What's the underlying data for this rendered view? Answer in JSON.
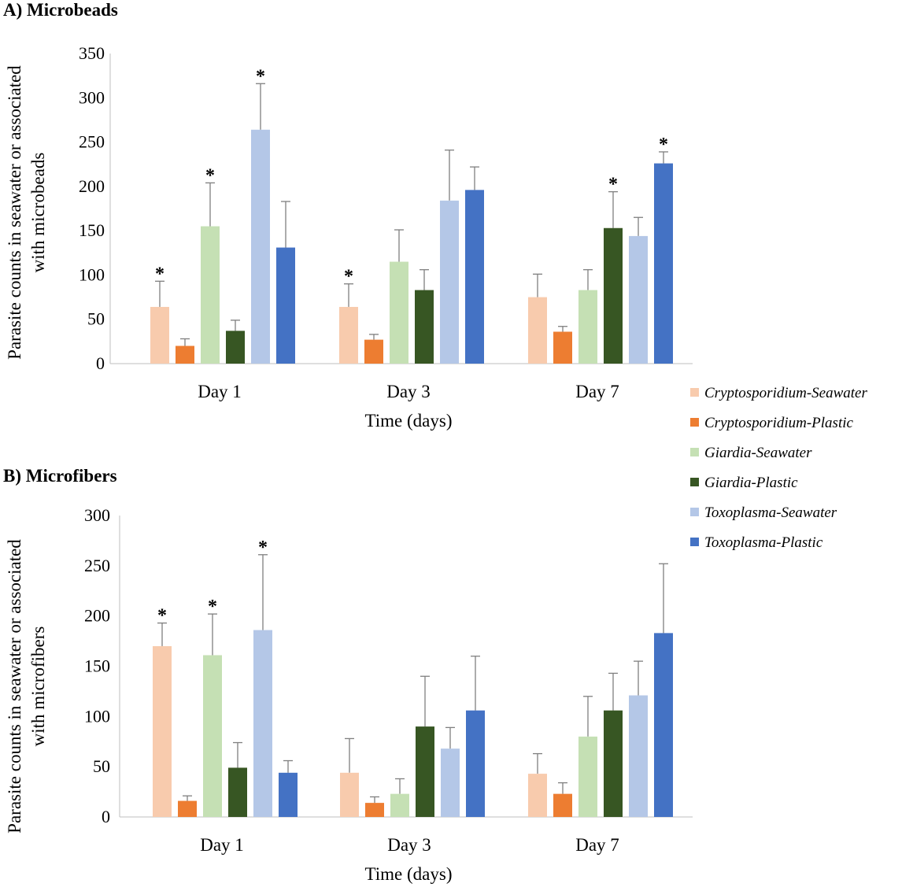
{
  "colors": [
    "#f8cbad",
    "#ed7d31",
    "#c5e0b4",
    "#375623",
    "#b4c7e7",
    "#4472c4"
  ],
  "legend": [
    "Cryptosporidium-Seawater",
    "Cryptosporidium-Plastic",
    "Giardia-Seawater",
    "Giardia-Plastic",
    "Toxoplasma-Seawater",
    "Toxoplasma-Plastic"
  ],
  "chart_data": [
    {
      "type": "bar",
      "title": "A) Microbeads",
      "xlabel": "Time (days)",
      "ylabel": [
        "Parasite counts in seawater or associated",
        "with microbeads"
      ],
      "categories": [
        "Day 1",
        "Day 3",
        "Day 7"
      ],
      "ylim": [
        0,
        350
      ],
      "yticks": [
        0,
        50,
        100,
        150,
        200,
        250,
        300,
        350
      ],
      "grid": false,
      "legend_position": "right",
      "series": [
        {
          "name": "Cryptosporidium-Seawater",
          "values": [
            64,
            64,
            75
          ],
          "error_upper": [
            93,
            90,
            101
          ],
          "significant": [
            true,
            true,
            false
          ]
        },
        {
          "name": "Cryptosporidium-Plastic",
          "values": [
            20,
            27,
            36
          ],
          "error_upper": [
            28,
            33,
            42
          ],
          "significant": [
            false,
            false,
            false
          ]
        },
        {
          "name": "Giardia-Seawater",
          "values": [
            155,
            115,
            83
          ],
          "error_upper": [
            204,
            151,
            106
          ],
          "significant": [
            true,
            false,
            false
          ]
        },
        {
          "name": "Giardia-Plastic",
          "values": [
            37,
            83,
            153
          ],
          "error_upper": [
            49,
            106,
            194
          ],
          "significant": [
            false,
            false,
            true
          ]
        },
        {
          "name": "Toxoplasma-Seawater",
          "values": [
            264,
            184,
            144
          ],
          "error_upper": [
            316,
            241,
            165
          ],
          "significant": [
            true,
            false,
            false
          ]
        },
        {
          "name": "Toxoplasma-Plastic",
          "values": [
            131,
            196,
            226
          ],
          "error_upper": [
            183,
            222,
            239
          ],
          "significant": [
            false,
            false,
            true
          ]
        }
      ],
      "annotation": "*"
    },
    {
      "type": "bar",
      "title": "B) Microfibers",
      "xlabel": "Time (days)",
      "ylabel": [
        "Parasite counts in seawater or associated",
        "with microfibers"
      ],
      "categories": [
        "Day 1",
        "Day 3",
        "Day 7"
      ],
      "ylim": [
        0,
        300
      ],
      "yticks": [
        0,
        50,
        100,
        150,
        200,
        250,
        300
      ],
      "grid": false,
      "legend_position": "right",
      "series": [
        {
          "name": "Cryptosporidium-Seawater",
          "values": [
            170,
            44,
            43
          ],
          "error_upper": [
            193,
            78,
            63
          ],
          "significant": [
            true,
            false,
            false
          ]
        },
        {
          "name": "Cryptosporidium-Plastic",
          "values": [
            16,
            14,
            23
          ],
          "error_upper": [
            21,
            20,
            34
          ],
          "significant": [
            false,
            false,
            false
          ]
        },
        {
          "name": "Giardia-Seawater",
          "values": [
            161,
            23,
            80
          ],
          "error_upper": [
            202,
            38,
            120
          ],
          "significant": [
            true,
            false,
            false
          ]
        },
        {
          "name": "Giardia-Plastic",
          "values": [
            49,
            90,
            106
          ],
          "error_upper": [
            74,
            140,
            143
          ],
          "significant": [
            false,
            false,
            false
          ]
        },
        {
          "name": "Toxoplasma-Seawater",
          "values": [
            186,
            68,
            121
          ],
          "error_upper": [
            261,
            89,
            155
          ],
          "significant": [
            true,
            false,
            false
          ]
        },
        {
          "name": "Toxoplasma-Plastic",
          "values": [
            44,
            106,
            183
          ],
          "error_upper": [
            56,
            160,
            252
          ],
          "significant": [
            false,
            false,
            false
          ]
        }
      ],
      "annotation": "*"
    }
  ]
}
